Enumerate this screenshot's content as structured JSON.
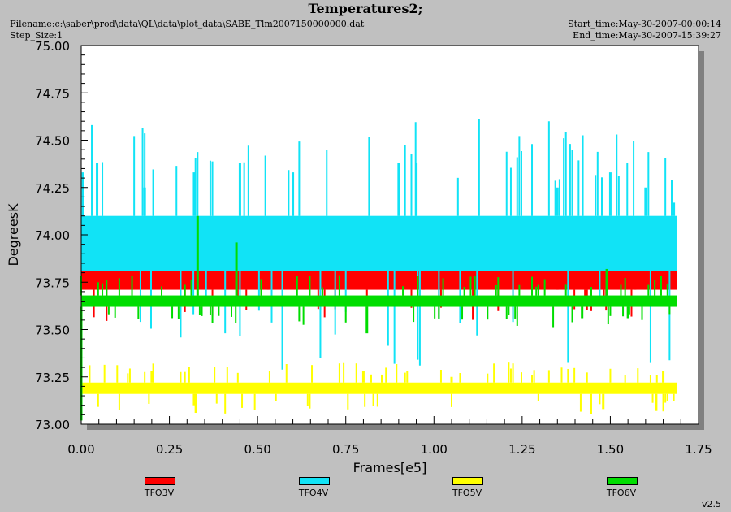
{
  "header": {
    "title": "Temperatures2;",
    "filename": "Filename:c:\\saber\\prod\\data\\QL\\data\\plot_data\\SABE_Tlm2007150000000.dat",
    "step_size": "Step_Size:1",
    "start_time": "Start_time:May-30-2007-00:00:14",
    "end_time": "End_time:May-30-2007-15:39:27"
  },
  "footer": {
    "version": "v2.5"
  },
  "chart_data": {
    "type": "line",
    "title": "Temperatures2;",
    "xlabel": "Frames[e5]",
    "ylabel": "DegreesK",
    "xlim": [
      0.0,
      1.75
    ],
    "ylim": [
      73.0,
      75.0
    ],
    "x_ticks": [
      "0.00",
      "0.25",
      "0.50",
      "0.75",
      "1.00",
      "1.25",
      "1.50",
      "1.75"
    ],
    "y_ticks": [
      "73.00",
      "73.25",
      "73.50",
      "73.75",
      "74.00",
      "74.25",
      "74.50",
      "74.75",
      "75.00"
    ],
    "grid": false,
    "legend_position": "bottom",
    "series": [
      {
        "name": "TFO3V",
        "color": "#ff0000",
        "band": [
          73.71,
          73.81
        ],
        "excursions": [
          [
            0.15,
            73.88
          ],
          [
            0.16,
            73.88
          ],
          [
            0.53,
            73.75
          ],
          [
            0.97,
            73.75
          ],
          [
            1.35,
            73.75
          ],
          [
            1.57,
            73.75
          ]
        ]
      },
      {
        "name": "TFO4V",
        "color": "#11e3f6",
        "band": [
          73.81,
          74.1
        ],
        "excursions": [
          [
            0.005,
            74.33
          ],
          [
            0.045,
            74.38
          ],
          [
            0.18,
            74.25
          ],
          [
            0.32,
            74.33
          ],
          [
            0.45,
            74.38
          ],
          [
            0.6,
            74.33
          ],
          [
            0.9,
            74.38
          ],
          [
            0.95,
            74.38
          ],
          [
            1.35,
            74.25
          ],
          [
            1.5,
            74.33
          ],
          [
            1.6,
            74.25
          ],
          [
            1.68,
            74.17
          ]
        ]
      },
      {
        "name": "TFO5V",
        "color": "#ffff00",
        "band": [
          73.16,
          73.22
        ],
        "excursions": [
          [
            0.0,
            73.28
          ],
          [
            0.2,
            73.28
          ],
          [
            0.325,
            73.06
          ],
          [
            0.32,
            73.1
          ],
          [
            0.8,
            73.28
          ],
          [
            1.05,
            73.25
          ],
          [
            1.48,
            73.08
          ],
          [
            1.63,
            73.07
          ],
          [
            1.65,
            73.28
          ]
        ]
      },
      {
        "name": "TFO6V",
        "color": "#00dd00",
        "band": [
          73.62,
          73.68
        ],
        "excursions": [
          [
            0.0,
            73.02
          ],
          [
            0.33,
            74.1
          ],
          [
            0.44,
            73.96
          ],
          [
            0.81,
            73.48
          ],
          [
            0.11,
            73.62
          ],
          [
            1.42,
            73.56
          ],
          [
            1.55,
            73.56
          ],
          [
            1.49,
            73.82
          ]
        ]
      }
    ]
  }
}
